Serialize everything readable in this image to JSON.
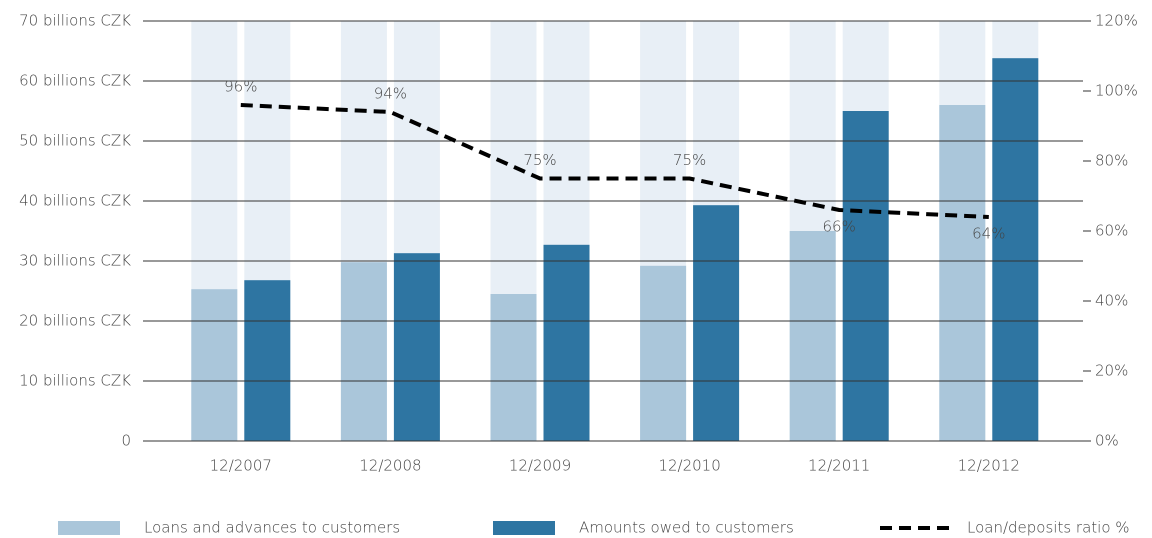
{
  "chart_data": {
    "type": "bar",
    "categories": [
      "12/2007",
      "12/2008",
      "12/2009",
      "12/2010",
      "12/2011",
      "12/2012"
    ],
    "series": [
      {
        "name": "Loans and advances to customers",
        "color": "#aac6da",
        "values": [
          25.3,
          29.8,
          24.5,
          29.2,
          35,
          56
        ]
      },
      {
        "name": "Amounts owed to customers",
        "color": "#2e75a2",
        "values": [
          26.8,
          31.3,
          32.7,
          39.3,
          55,
          63.8
        ]
      },
      {
        "name": "Loan/deposits ratio %",
        "color": "#000000",
        "type": "line",
        "axis": "y2",
        "values": [
          96,
          94,
          75,
          75,
          66,
          64
        ],
        "value_labels": [
          "96%",
          "94%",
          "75%",
          "75%",
          "66%",
          "64%"
        ]
      }
    ],
    "background_color": "#e8eff6",
    "ylim": [
      0,
      70
    ],
    "yticks": [
      0,
      {
        "value": 10,
        "label": "10 billions CZK"
      },
      {
        "value": 20,
        "label": "20 billions CZK"
      },
      {
        "value": 30,
        "label": "30 billions CZK"
      },
      {
        "value": 40,
        "label": "40 billions CZK"
      },
      {
        "value": 50,
        "label": "50 billions CZK"
      },
      {
        "value": 60,
        "label": "60 billions CZK"
      },
      {
        "value": 70,
        "label": "70 billions CZK"
      }
    ],
    "y2lim": [
      0,
      120
    ],
    "y2ticks": [
      {
        "value": 0,
        "label": "0%"
      },
      {
        "value": 20,
        "label": "20%"
      },
      {
        "value": 40,
        "label": "40%"
      },
      {
        "value": 60,
        "label": "60%"
      },
      {
        "value": 80,
        "label": "80%"
      },
      {
        "value": 100,
        "label": "100%"
      },
      {
        "value": 120,
        "label": "120%"
      }
    ],
    "grid": true,
    "legend": "bottom"
  }
}
